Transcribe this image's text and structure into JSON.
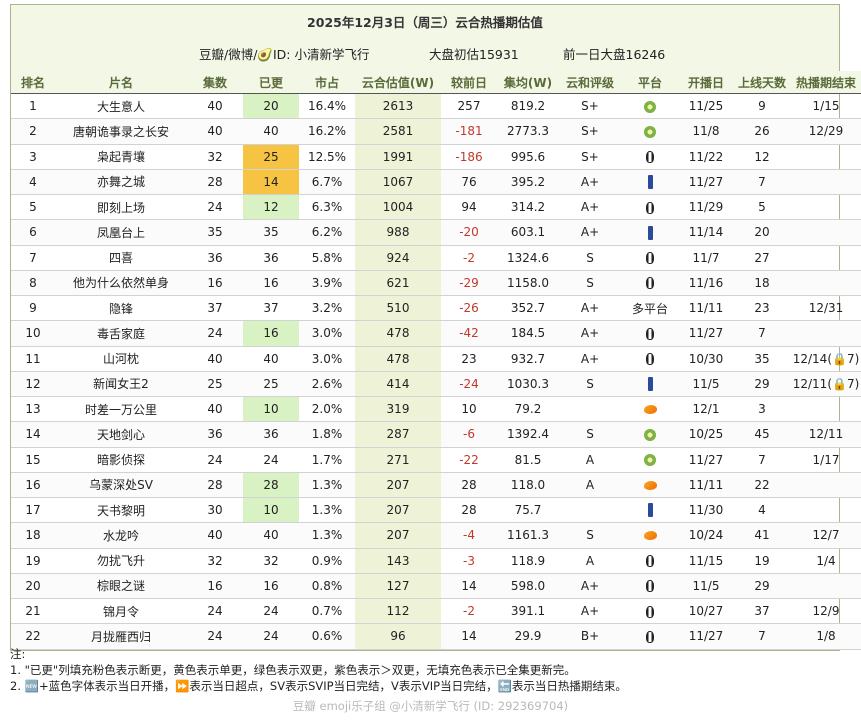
{
  "title": "2025年12月3日（周三）云合热播期估值",
  "meta": {
    "source": "豆瓣/微博/🥑ID: 小清新学飞行",
    "initial": "大盘初估15931",
    "prev": "前一日大盘16246"
  },
  "headers": [
    "排名",
    "片名",
    "集数",
    "已更",
    "市占",
    "云合估值(W)",
    "较前日",
    "集均(W)",
    "云和评级",
    "平台",
    "开播日",
    "上线天数",
    "热播期结束"
  ],
  "rows": [
    {
      "rank": "1",
      "title": "大生意人",
      "eps": "40",
      "updated": "20",
      "share": "16.4%",
      "est": "2613",
      "change": "257",
      "avg": "819.2",
      "grade": "S+",
      "platform": "kiwi",
      "start": "11/25",
      "days": "9",
      "end": "1/15",
      "upd_color": "green"
    },
    {
      "rank": "2",
      "title": "唐朝诡事录之长安",
      "eps": "40",
      "updated": "40",
      "share": "16.2%",
      "est": "2581",
      "change": "-181",
      "avg": "2773.3",
      "grade": "S+",
      "platform": "kiwi",
      "start": "11/8",
      "days": "26",
      "end": "12/29",
      "upd_color": ""
    },
    {
      "rank": "3",
      "title": "枭起青壤",
      "eps": "32",
      "updated": "25",
      "share": "12.5%",
      "est": "1991",
      "change": "-186",
      "avg": "995.6",
      "grade": "S+",
      "platform": "penguin",
      "start": "11/22",
      "days": "12",
      "end": "",
      "upd_color": "yellow"
    },
    {
      "rank": "4",
      "title": "亦舞之城",
      "eps": "28",
      "updated": "14",
      "share": "6.7%",
      "est": "1067",
      "change": "76",
      "avg": "395.2",
      "grade": "A+",
      "platform": "jeans",
      "start": "11/27",
      "days": "7",
      "end": "",
      "upd_color": "yellow"
    },
    {
      "rank": "5",
      "title": "即刻上场",
      "eps": "24",
      "updated": "12",
      "share": "6.3%",
      "est": "1004",
      "change": "94",
      "avg": "314.2",
      "grade": "A+",
      "platform": "penguin",
      "start": "11/29",
      "days": "5",
      "end": "",
      "upd_color": "green"
    },
    {
      "rank": "6",
      "title": "凤凰台上",
      "eps": "35",
      "updated": "35",
      "share": "6.2%",
      "est": "988",
      "change": "-20",
      "avg": "603.1",
      "grade": "A+",
      "platform": "jeans",
      "start": "11/14",
      "days": "20",
      "end": "",
      "upd_color": ""
    },
    {
      "rank": "7",
      "title": "四喜",
      "eps": "36",
      "updated": "36",
      "share": "5.8%",
      "est": "924",
      "change": "-2",
      "avg": "1324.6",
      "grade": "S",
      "platform": "penguin",
      "start": "11/7",
      "days": "27",
      "end": "",
      "upd_color": ""
    },
    {
      "rank": "8",
      "title": "他为什么依然单身",
      "eps": "16",
      "updated": "16",
      "share": "3.9%",
      "est": "621",
      "change": "-29",
      "avg": "1158.0",
      "grade": "S",
      "platform": "penguin",
      "start": "11/16",
      "days": "18",
      "end": "",
      "upd_color": ""
    },
    {
      "rank": "9",
      "title": "隐锋",
      "eps": "37",
      "updated": "37",
      "share": "3.2%",
      "est": "510",
      "change": "-26",
      "avg": "352.7",
      "grade": "A+",
      "platform": "多平台",
      "start": "11/11",
      "days": "23",
      "end": "12/31",
      "upd_color": ""
    },
    {
      "rank": "10",
      "title": "毒舌家庭",
      "eps": "24",
      "updated": "16",
      "share": "3.0%",
      "est": "478",
      "change": "-42",
      "avg": "184.5",
      "grade": "A+",
      "platform": "penguin",
      "start": "11/27",
      "days": "7",
      "end": "",
      "upd_color": "green"
    },
    {
      "rank": "11",
      "title": "山河枕",
      "eps": "40",
      "updated": "40",
      "share": "3.0%",
      "est": "478",
      "change": "23",
      "avg": "932.7",
      "grade": "A+",
      "platform": "penguin",
      "start": "10/30",
      "days": "35",
      "end": "12/14(🔒7)",
      "upd_color": ""
    },
    {
      "rank": "12",
      "title": "新闻女王2",
      "eps": "25",
      "updated": "25",
      "share": "2.6%",
      "est": "414",
      "change": "-24",
      "avg": "1030.3",
      "grade": "S",
      "platform": "jeans",
      "start": "11/5",
      "days": "29",
      "end": "12/11(🔒7)",
      "upd_color": ""
    },
    {
      "rank": "13",
      "title": "时差一万公里",
      "eps": "40",
      "updated": "10",
      "share": "2.0%",
      "est": "319",
      "change": "10",
      "avg": "79.2",
      "grade": "",
      "platform": "mango",
      "start": "12/1",
      "days": "3",
      "end": "",
      "upd_color": "green"
    },
    {
      "rank": "14",
      "title": "天地剑心",
      "eps": "36",
      "updated": "36",
      "share": "1.8%",
      "est": "287",
      "change": "-6",
      "avg": "1392.4",
      "grade": "S",
      "platform": "kiwi",
      "start": "10/25",
      "days": "45",
      "end": "12/11",
      "upd_color": ""
    },
    {
      "rank": "15",
      "title": "暗影侦探",
      "eps": "24",
      "updated": "24",
      "share": "1.7%",
      "est": "271",
      "change": "-22",
      "avg": "81.5",
      "grade": "A",
      "platform": "kiwi",
      "start": "11/27",
      "days": "7",
      "end": "1/17",
      "upd_color": ""
    },
    {
      "rank": "16",
      "title": "乌蒙深处SV",
      "eps": "28",
      "updated": "28",
      "share": "1.3%",
      "est": "207",
      "change": "28",
      "avg": "118.0",
      "grade": "A",
      "platform": "mango",
      "start": "11/11",
      "days": "22",
      "end": "",
      "upd_color": "green"
    },
    {
      "rank": "17",
      "title": "天书黎明",
      "eps": "30",
      "updated": "10",
      "share": "1.3%",
      "est": "207",
      "change": "28",
      "avg": "75.7",
      "grade": "",
      "platform": "jeans",
      "start": "11/30",
      "days": "4",
      "end": "",
      "upd_color": "green"
    },
    {
      "rank": "18",
      "title": "水龙吟",
      "eps": "40",
      "updated": "40",
      "share": "1.3%",
      "est": "207",
      "change": "-4",
      "avg": "1161.3",
      "grade": "S",
      "platform": "mango",
      "start": "10/24",
      "days": "41",
      "end": "12/7",
      "upd_color": ""
    },
    {
      "rank": "19",
      "title": "勿扰飞升",
      "eps": "32",
      "updated": "32",
      "share": "0.9%",
      "est": "143",
      "change": "-3",
      "avg": "118.9",
      "grade": "A",
      "platform": "penguin",
      "start": "11/15",
      "days": "19",
      "end": "1/4",
      "upd_color": ""
    },
    {
      "rank": "20",
      "title": "棕眼之谜",
      "eps": "16",
      "updated": "16",
      "share": "0.8%",
      "est": "127",
      "change": "14",
      "avg": "598.0",
      "grade": "A+",
      "platform": "penguin",
      "start": "11/5",
      "days": "29",
      "end": "",
      "upd_color": ""
    },
    {
      "rank": "21",
      "title": "锦月令",
      "eps": "24",
      "updated": "24",
      "share": "0.7%",
      "est": "112",
      "change": "-2",
      "avg": "391.1",
      "grade": "A+",
      "platform": "penguin",
      "start": "10/27",
      "days": "37",
      "end": "12/9",
      "upd_color": ""
    },
    {
      "rank": "22",
      "title": "月拢雁西归",
      "eps": "24",
      "updated": "24",
      "share": "0.6%",
      "est": "96",
      "change": "14",
      "avg": "29.9",
      "grade": "B+",
      "platform": "penguin",
      "start": "11/27",
      "days": "7",
      "end": "1/8",
      "upd_color": ""
    }
  ],
  "notes": {
    "label": "注:",
    "line1": "1. \"已更\"列填充粉色表示断更，黄色表示单更，绿色表示双更，紫色表示＞双更，无填充色表示已全集更新完。",
    "line2": "2. 🆕+蓝色字体表示当日开播，⏩表示当日超点，SV表示SVIP当日完结，V表示VIP当日完结，🔚表示当日热播期结束。"
  },
  "watermark": "豆瓣 emoji乐子组 @小清新学飞行 (ID: 292369704)"
}
